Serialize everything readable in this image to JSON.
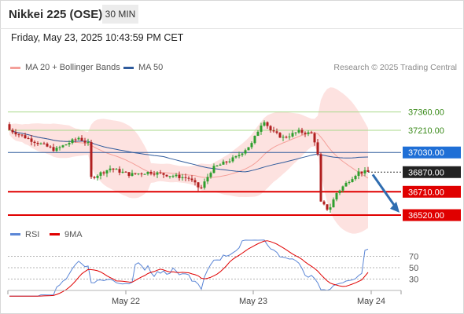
{
  "header": {
    "title": "Nikkei 225 (OSE)",
    "timeframe": "30 MIN"
  },
  "datetime": "Friday, May 23, 2025 10:43:59 PM CET",
  "legend": {
    "bollinger": {
      "label": "MA 20 + Bollinger Bands",
      "color": "#f4a09a"
    },
    "ma50": {
      "label": "MA 50",
      "color": "#2f5b9c"
    },
    "rsi": {
      "label": "RSI",
      "color": "#5b86d6"
    },
    "rsi_ma": {
      "label": "9MA",
      "color": "#e00000"
    }
  },
  "attribution": "Research © 2025 Trading Central",
  "colors": {
    "candle_up": "#2e9f2e",
    "candle_down": "#b01f1f",
    "band_fill": "#fde2e0",
    "resistance": "#a8d88a",
    "support": "#e00000",
    "pivot": "#2f5b9c",
    "current": "#333333",
    "forecast_arrow": "#2f6db0"
  },
  "chart_data": {
    "type": "candlestick",
    "y_range": [
      36450,
      37600
    ],
    "x_labels": [
      "May 22",
      "May 23",
      "May 24"
    ],
    "levels": [
      {
        "label": "37360.00",
        "value": 37360,
        "kind": "resistance"
      },
      {
        "label": "37210.00",
        "value": 37210,
        "kind": "resistance"
      },
      {
        "label": "37030.00",
        "value": 37030,
        "kind": "pivot"
      },
      {
        "label": "36870.00",
        "value": 36870,
        "kind": "current"
      },
      {
        "label": "36710.00",
        "value": 36710,
        "kind": "support"
      },
      {
        "label": "36520.00",
        "value": 36520,
        "kind": "support"
      }
    ],
    "forecast": {
      "from": 36850,
      "to": 36540
    },
    "rsi": {
      "levels": [
        "70",
        "50",
        "30"
      ],
      "range": [
        10,
        90
      ]
    }
  }
}
